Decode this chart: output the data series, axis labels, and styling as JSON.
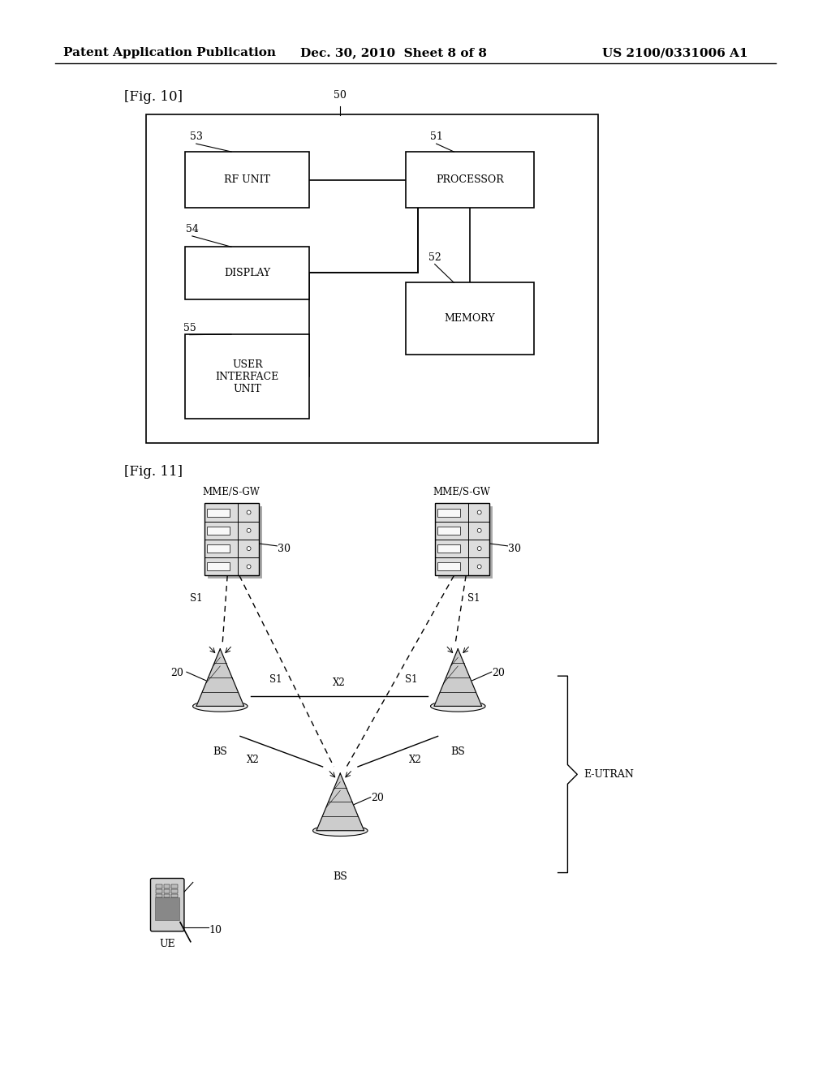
{
  "bg_color": "#ffffff",
  "header_left": "Patent Application Publication",
  "header_mid": "Dec. 30, 2010  Sheet 8 of 8",
  "header_right": "US 2100/0331006 A1",
  "fig10_label": "[Fig. 10]",
  "fig11_label": "[Fig. 11]"
}
